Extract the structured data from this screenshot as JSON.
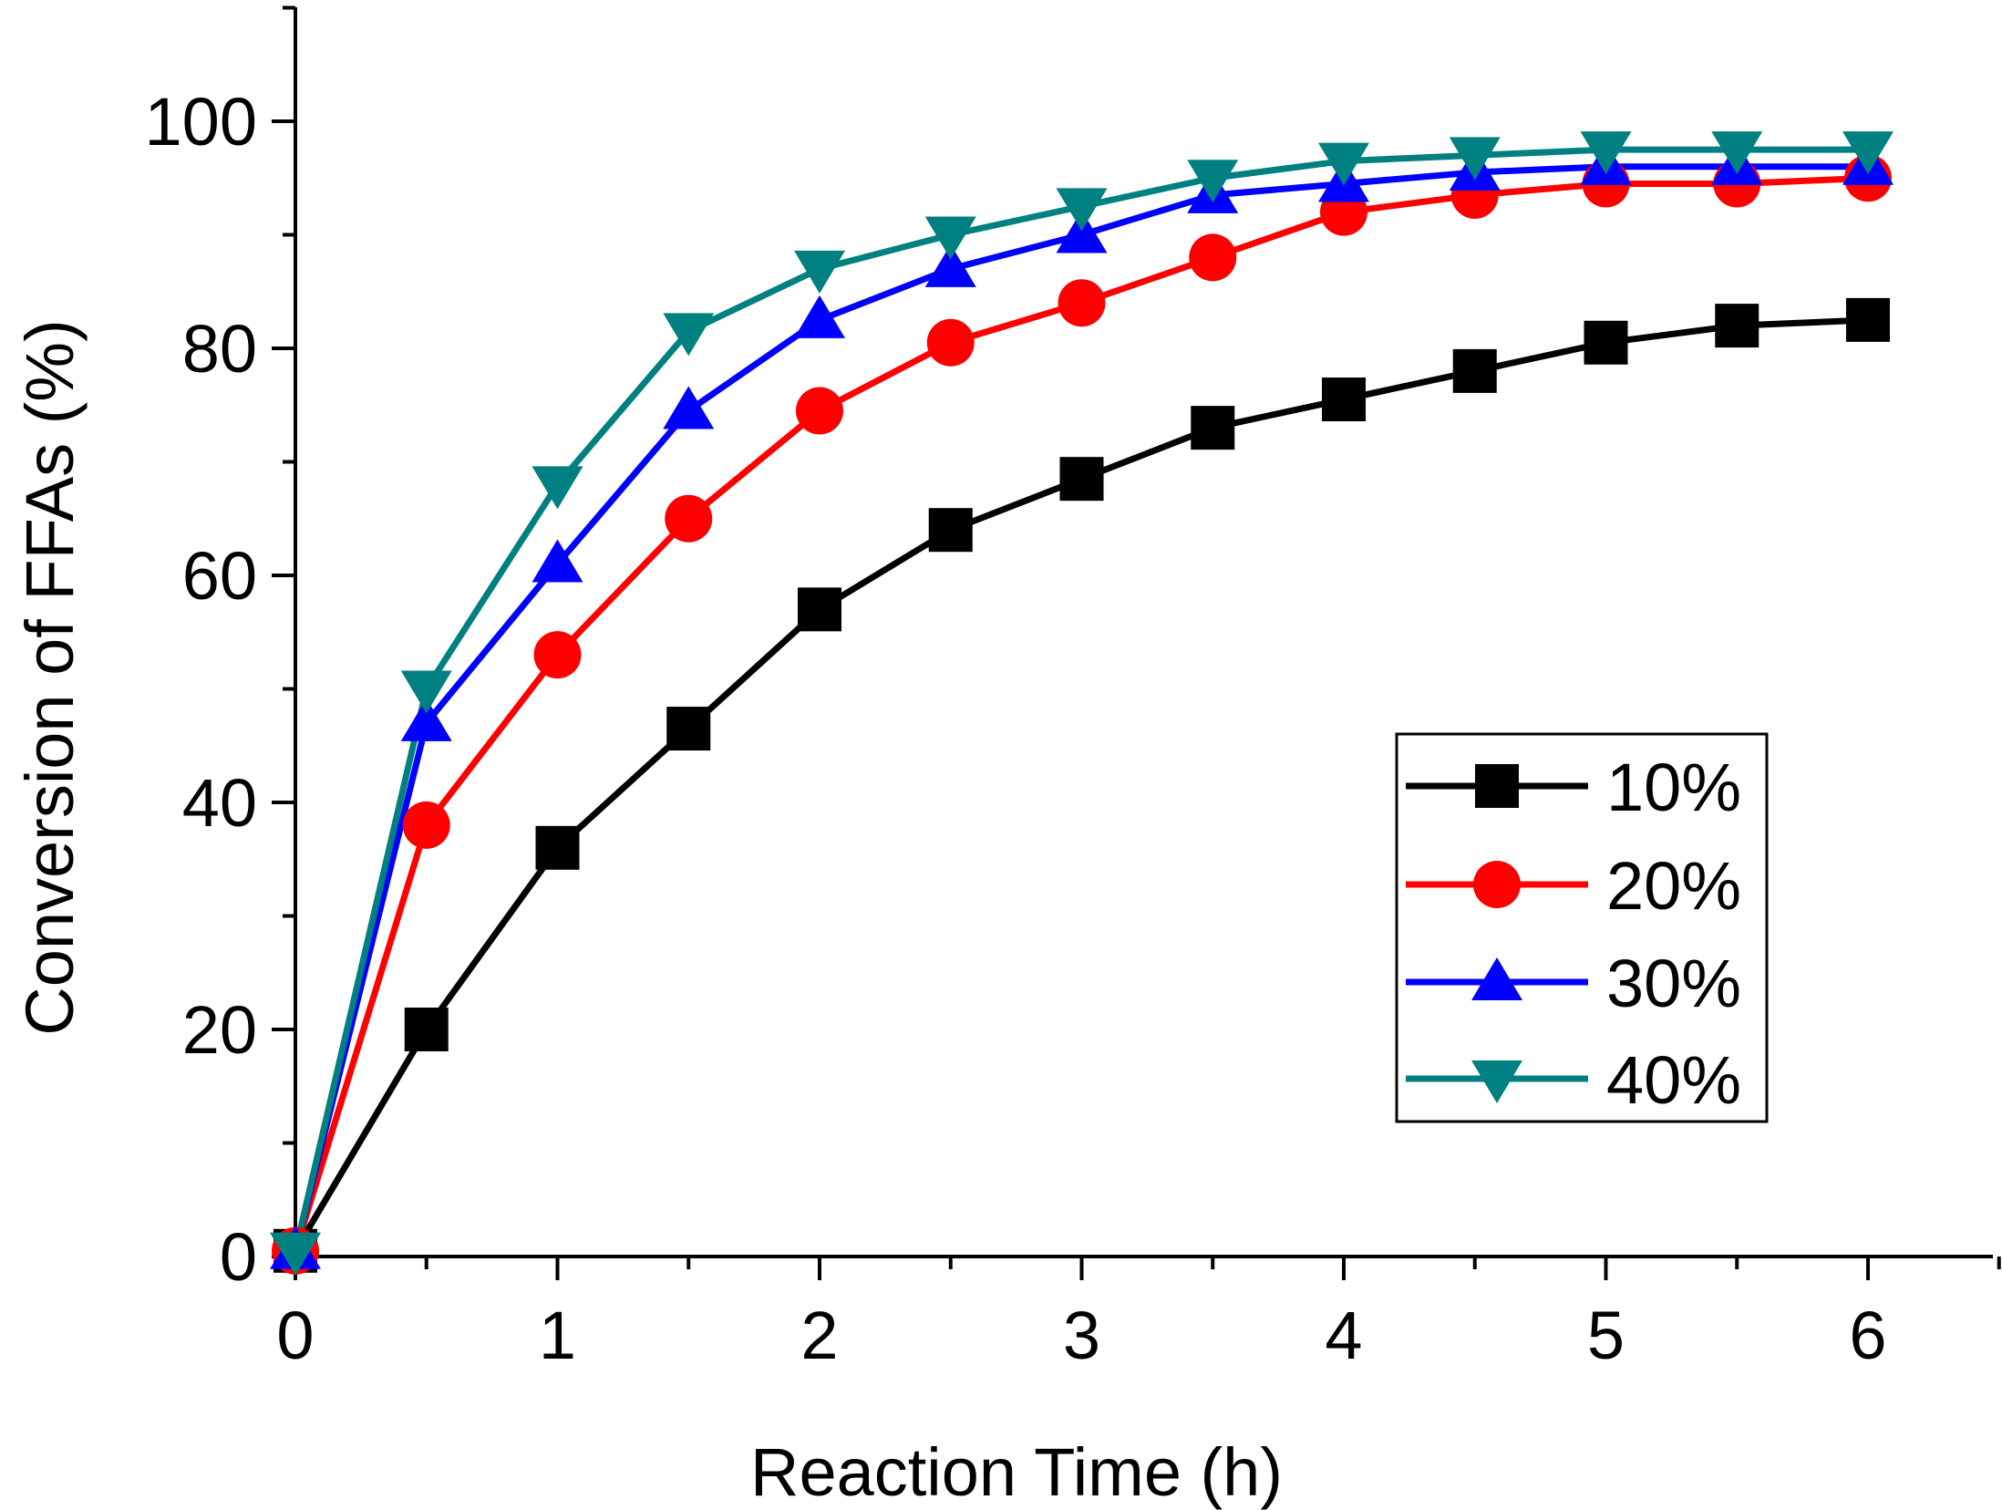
{
  "chart_data": {
    "type": "line",
    "title": "",
    "xlabel": "Reaction Time (h)",
    "ylabel": "Conversion of FFAs (%)",
    "xlim": [
      0,
      6.5
    ],
    "ylim": [
      0,
      110
    ],
    "x": [
      0,
      0.5,
      1,
      1.5,
      2,
      2.5,
      3,
      3.5,
      4,
      4.5,
      5,
      5.5,
      6
    ],
    "x_ticks": [
      0,
      1,
      2,
      3,
      4,
      5,
      6
    ],
    "x_tick_labels": [
      "0",
      "1",
      "2",
      "3",
      "4",
      "5",
      "6"
    ],
    "x_minor_ticks": [
      0.5,
      1.5,
      2.5,
      3.5,
      4.5,
      5.5,
      6.5
    ],
    "y_ticks": [
      0,
      20,
      40,
      60,
      80,
      100
    ],
    "y_tick_labels": [
      "0",
      "20",
      "40",
      "60",
      "80",
      "100"
    ],
    "y_minor_ticks": [
      10,
      30,
      50,
      70,
      90,
      110
    ],
    "grid": false,
    "legend_position": "right-middle",
    "series": [
      {
        "name": "10%",
        "color": "#000000",
        "marker": "square",
        "values": [
          0.5,
          20,
          36,
          46.5,
          57,
          64,
          68.5,
          73,
          75.5,
          78,
          80.5,
          82,
          82.5
        ]
      },
      {
        "name": "20%",
        "color": "#ff0000",
        "marker": "circle",
        "values": [
          0.5,
          38,
          53,
          65,
          74.5,
          80.5,
          84,
          88,
          92,
          93.5,
          94.5,
          94.5,
          95
        ]
      },
      {
        "name": "30%",
        "color": "#0000ff",
        "marker": "triangle-up",
        "values": [
          0.5,
          47,
          61,
          74.5,
          82.5,
          87,
          90,
          93.5,
          94.5,
          95.5,
          96,
          96,
          96
        ]
      },
      {
        "name": "40%",
        "color": "#008080",
        "marker": "triangle-down",
        "values": [
          0.5,
          50,
          68,
          81.5,
          87,
          90,
          92.5,
          95,
          96.5,
          97,
          97.5,
          97.5,
          97.5
        ]
      }
    ]
  }
}
